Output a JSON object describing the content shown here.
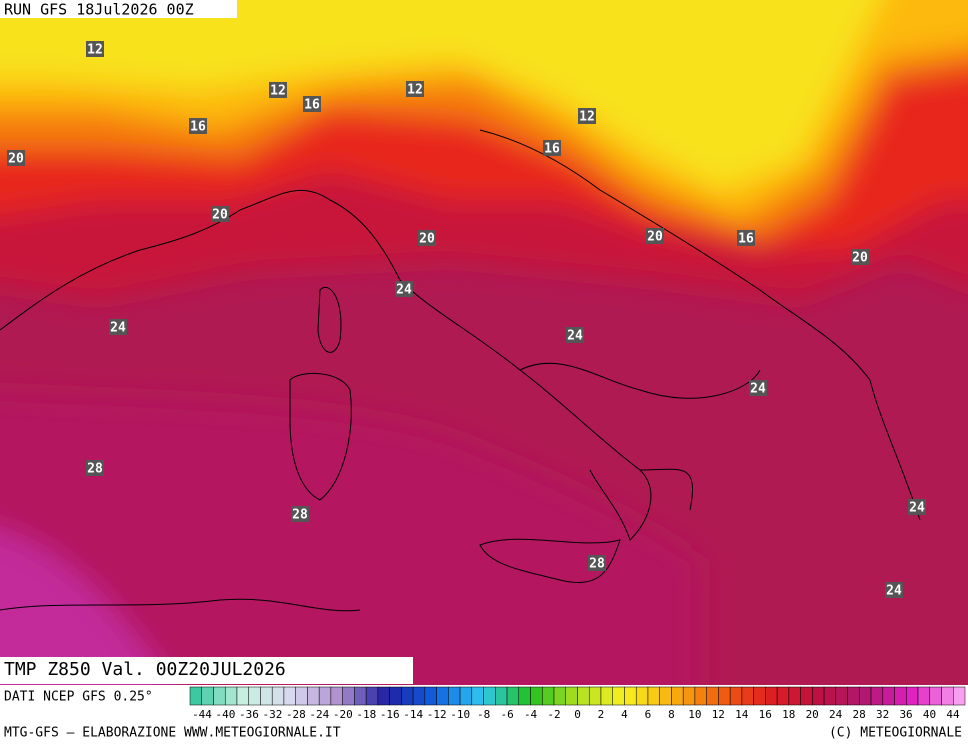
{
  "header": {
    "title": "RUN GFS 18Jul2026 00Z"
  },
  "map": {
    "field_label": "TMP Z850 Val. 00Z20JUL2026",
    "source": "DATI NCEP GFS 0.25°",
    "contour_labels": [
      12,
      12,
      12,
      12,
      16,
      16,
      16,
      16,
      20,
      20,
      20,
      20,
      20,
      24,
      24,
      24,
      24,
      24,
      24,
      28,
      28,
      28
    ]
  },
  "colorbar": {
    "labels": [
      -44,
      -40,
      -36,
      -32,
      -28,
      -24,
      -20,
      -18,
      -16,
      -14,
      -12,
      -10,
      -8,
      -6,
      -4,
      -2,
      0,
      2,
      4,
      6,
      8,
      10,
      12,
      14,
      16,
      18,
      20,
      24,
      28,
      32,
      36,
      40,
      44
    ]
  },
  "footer": {
    "left": "MTG-GFS — ELABORAZIONE WWW.METEOGIORNALE.IT",
    "right": "(C) METEOGIORNALE"
  }
}
